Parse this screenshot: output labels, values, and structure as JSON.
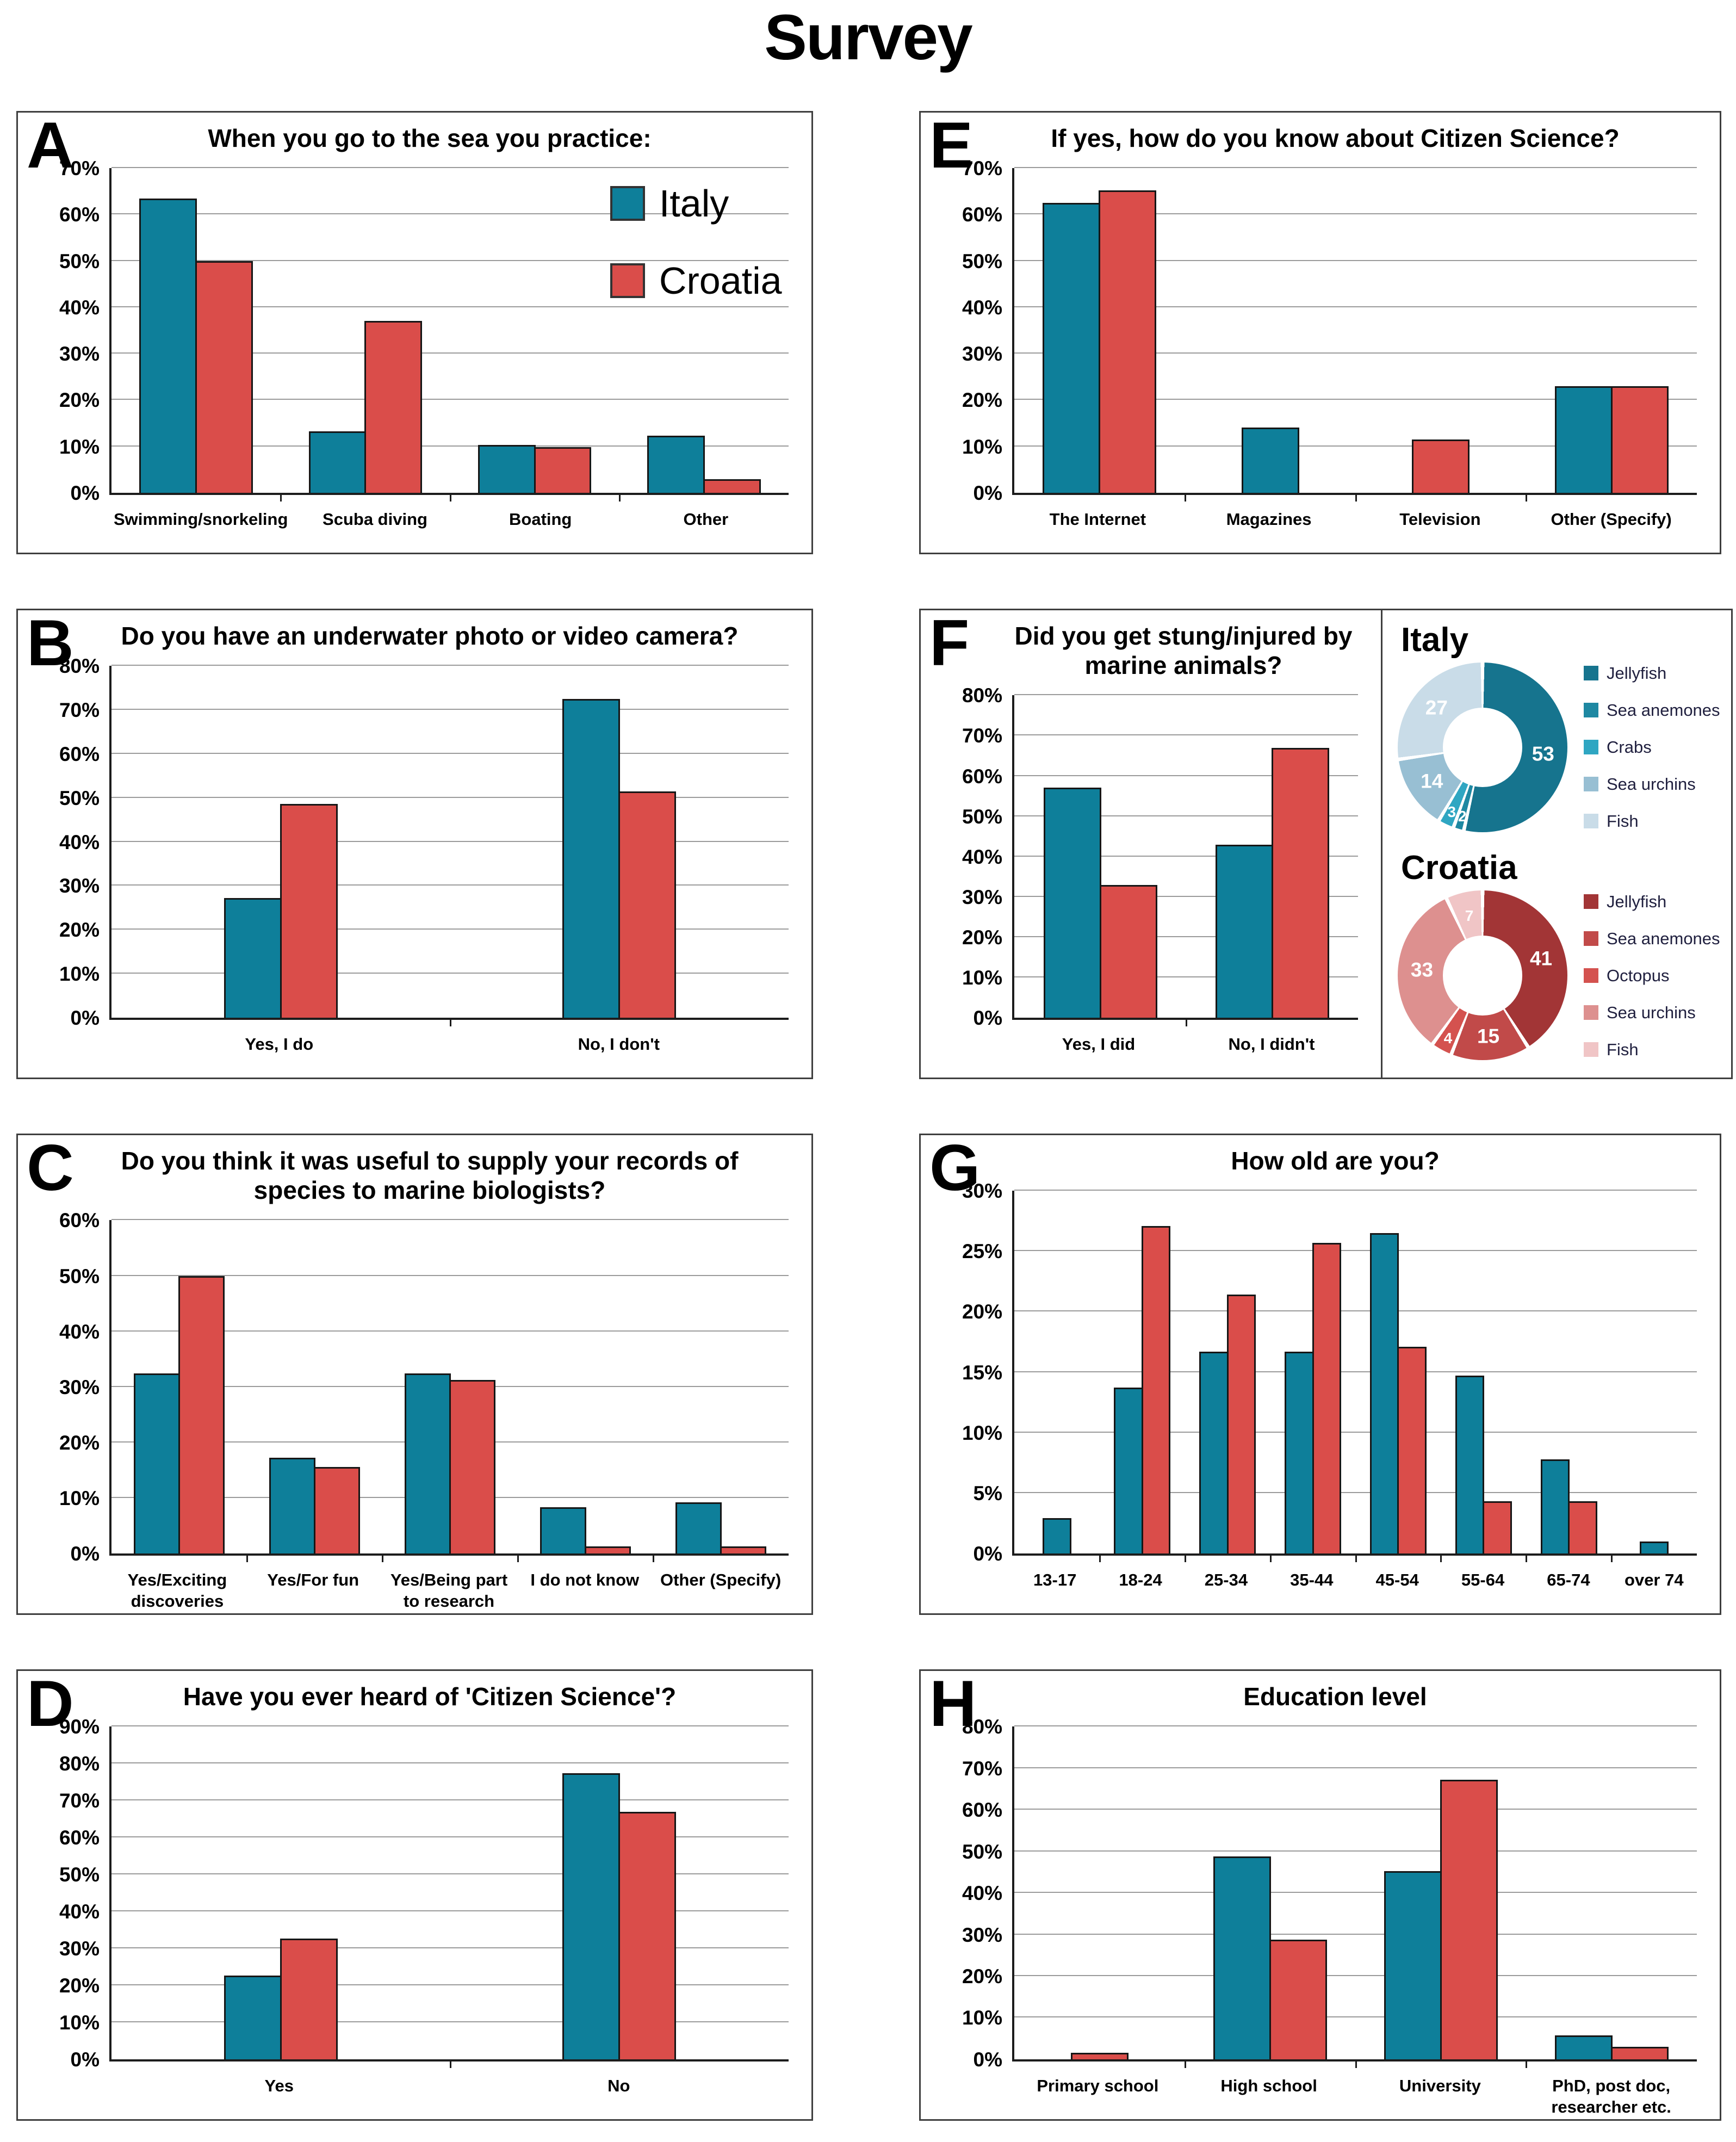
{
  "page_title": "Survey",
  "legend": {
    "italy_label": "Italy",
    "croatia_label": "Croatia"
  },
  "colors": {
    "italy_bar": "#0e7f9a",
    "croatia_bar": "#da4d4a",
    "gridline": "#9b9b9b",
    "axis": "#1c1c1c",
    "panel_border": "#3f3f3f"
  },
  "chart_data": [
    {
      "letter": "A",
      "type": "bar",
      "title": "When you go to the sea you practice:",
      "ylim": [
        0,
        70
      ],
      "ystep": 10,
      "grid": true,
      "legend_inside": true,
      "categories": [
        "Swimming/snorkeling",
        "Scuba diving",
        "Boating",
        "Other"
      ],
      "series": [
        {
          "name": "Italy",
          "color": "#0e7f9a",
          "values": [
            63.5,
            13.2,
            10.3,
            12.3
          ]
        },
        {
          "name": "Croatia",
          "color": "#da4d4a",
          "values": [
            50,
            37,
            9.9,
            2.9
          ]
        }
      ]
    },
    {
      "letter": "B",
      "type": "bar",
      "title": "Do you have an underwater photo or video camera?",
      "ylim": [
        0,
        80
      ],
      "ystep": 10,
      "grid": true,
      "categories": [
        "Yes, I do",
        "No, I don't"
      ],
      "series": [
        {
          "name": "Italy",
          "color": "#0e7f9a",
          "values": [
            27.2,
            72.5
          ]
        },
        {
          "name": "Croatia",
          "color": "#da4d4a",
          "values": [
            48.6,
            51.4
          ]
        }
      ]
    },
    {
      "letter": "C",
      "type": "bar",
      "title": "Do you think it was useful to supply your records of species to marine biologists?",
      "ylim": [
        0,
        60
      ],
      "ystep": 10,
      "grid": true,
      "categories": [
        "Yes/Exciting discoveries",
        "Yes/For fun",
        "Yes/Being part to research",
        "I do not know",
        "Other (Specify)"
      ],
      "series": [
        {
          "name": "Italy",
          "color": "#0e7f9a",
          "values": [
            32.4,
            17.2,
            32.4,
            8.3,
            9.2
          ]
        },
        {
          "name": "Croatia",
          "color": "#da4d4a",
          "values": [
            50,
            15.6,
            31.2,
            1.3,
            1.3
          ]
        }
      ]
    },
    {
      "letter": "D",
      "type": "bar",
      "title": "Have you ever heard of 'Citizen Science'?",
      "ylim": [
        0,
        90
      ],
      "ystep": 10,
      "grid": true,
      "categories": [
        "Yes",
        "No"
      ],
      "series": [
        {
          "name": "Italy",
          "color": "#0e7f9a",
          "values": [
            22.7,
            77.3
          ]
        },
        {
          "name": "Croatia",
          "color": "#da4d4a",
          "values": [
            32.6,
            67
          ]
        }
      ]
    },
    {
      "letter": "E",
      "type": "bar",
      "title": "If yes, how do you know about Citizen Science?",
      "ylim": [
        0,
        70
      ],
      "ystep": 10,
      "grid": true,
      "categories": [
        "The Internet",
        "Magazines",
        "Television",
        "Other (Specify)"
      ],
      "series": [
        {
          "name": "Italy",
          "color": "#0e7f9a",
          "values": [
            62.5,
            14.1,
            0,
            23
          ]
        },
        {
          "name": "Croatia",
          "color": "#da4d4a",
          "values": [
            65.2,
            0,
            11.5,
            23
          ]
        }
      ]
    },
    {
      "letter": "F",
      "type": "bar",
      "title": "Did you get stung/injured by marine animals?",
      "ylim": [
        0,
        80
      ],
      "ystep": 10,
      "grid": true,
      "categories": [
        "Yes, I did",
        "No, I didn't"
      ],
      "series": [
        {
          "name": "Italy",
          "color": "#0e7f9a",
          "values": [
            57.1,
            42.9
          ]
        },
        {
          "name": "Croatia",
          "color": "#da4d4a",
          "values": [
            33,
            67
          ]
        }
      ]
    },
    {
      "letter": "G",
      "type": "bar",
      "title": "How old are you?",
      "ylim": [
        0,
        30
      ],
      "ystep": 5,
      "grid": true,
      "categories": [
        "13-17",
        "18-24",
        "25-34",
        "35-44",
        "45-54",
        "55-64",
        "65-74",
        "over 74"
      ],
      "series": [
        {
          "name": "Italy",
          "color": "#0e7f9a",
          "values": [
            2.9,
            13.7,
            16.7,
            16.7,
            26.5,
            14.7,
            7.8,
            1
          ]
        },
        {
          "name": "Croatia",
          "color": "#da4d4a",
          "values": [
            0,
            27.1,
            21.4,
            25.7,
            17.1,
            4.3,
            4.3,
            0
          ]
        }
      ]
    },
    {
      "letter": "H",
      "type": "bar",
      "title": "Education level",
      "ylim": [
        0,
        80
      ],
      "ystep": 10,
      "grid": true,
      "categories": [
        "Primary school",
        "High school",
        "University",
        "PhD, post doc, researcher etc."
      ],
      "series": [
        {
          "name": "Italy",
          "color": "#0e7f9a",
          "values": [
            0,
            48.8,
            45.3,
            5.7
          ]
        },
        {
          "name": "Croatia",
          "color": "#da4d4a",
          "values": [
            1.5,
            28.8,
            67.2,
            3
          ]
        }
      ]
    },
    {
      "type": "donut",
      "title": "Italy",
      "labels": [
        "Jellyfish",
        "Sea anemones",
        "Crabs",
        "Sea urchins",
        "Fish"
      ],
      "values": [
        53,
        2,
        3,
        14,
        27
      ],
      "colors": [
        "#16748e",
        "#1e88a2",
        "#2fa6c2",
        "#98bfd3",
        "#c9dce8"
      ]
    },
    {
      "type": "donut",
      "title": "Croatia",
      "labels": [
        "Jellyfish",
        "Sea anemones",
        "Octopus",
        "Sea urchins",
        "Fish"
      ],
      "values": [
        41,
        15,
        4,
        33,
        7
      ],
      "colors": [
        "#a23536",
        "#c14a49",
        "#d4524f",
        "#dd908f",
        "#f0c5c6"
      ]
    }
  ]
}
